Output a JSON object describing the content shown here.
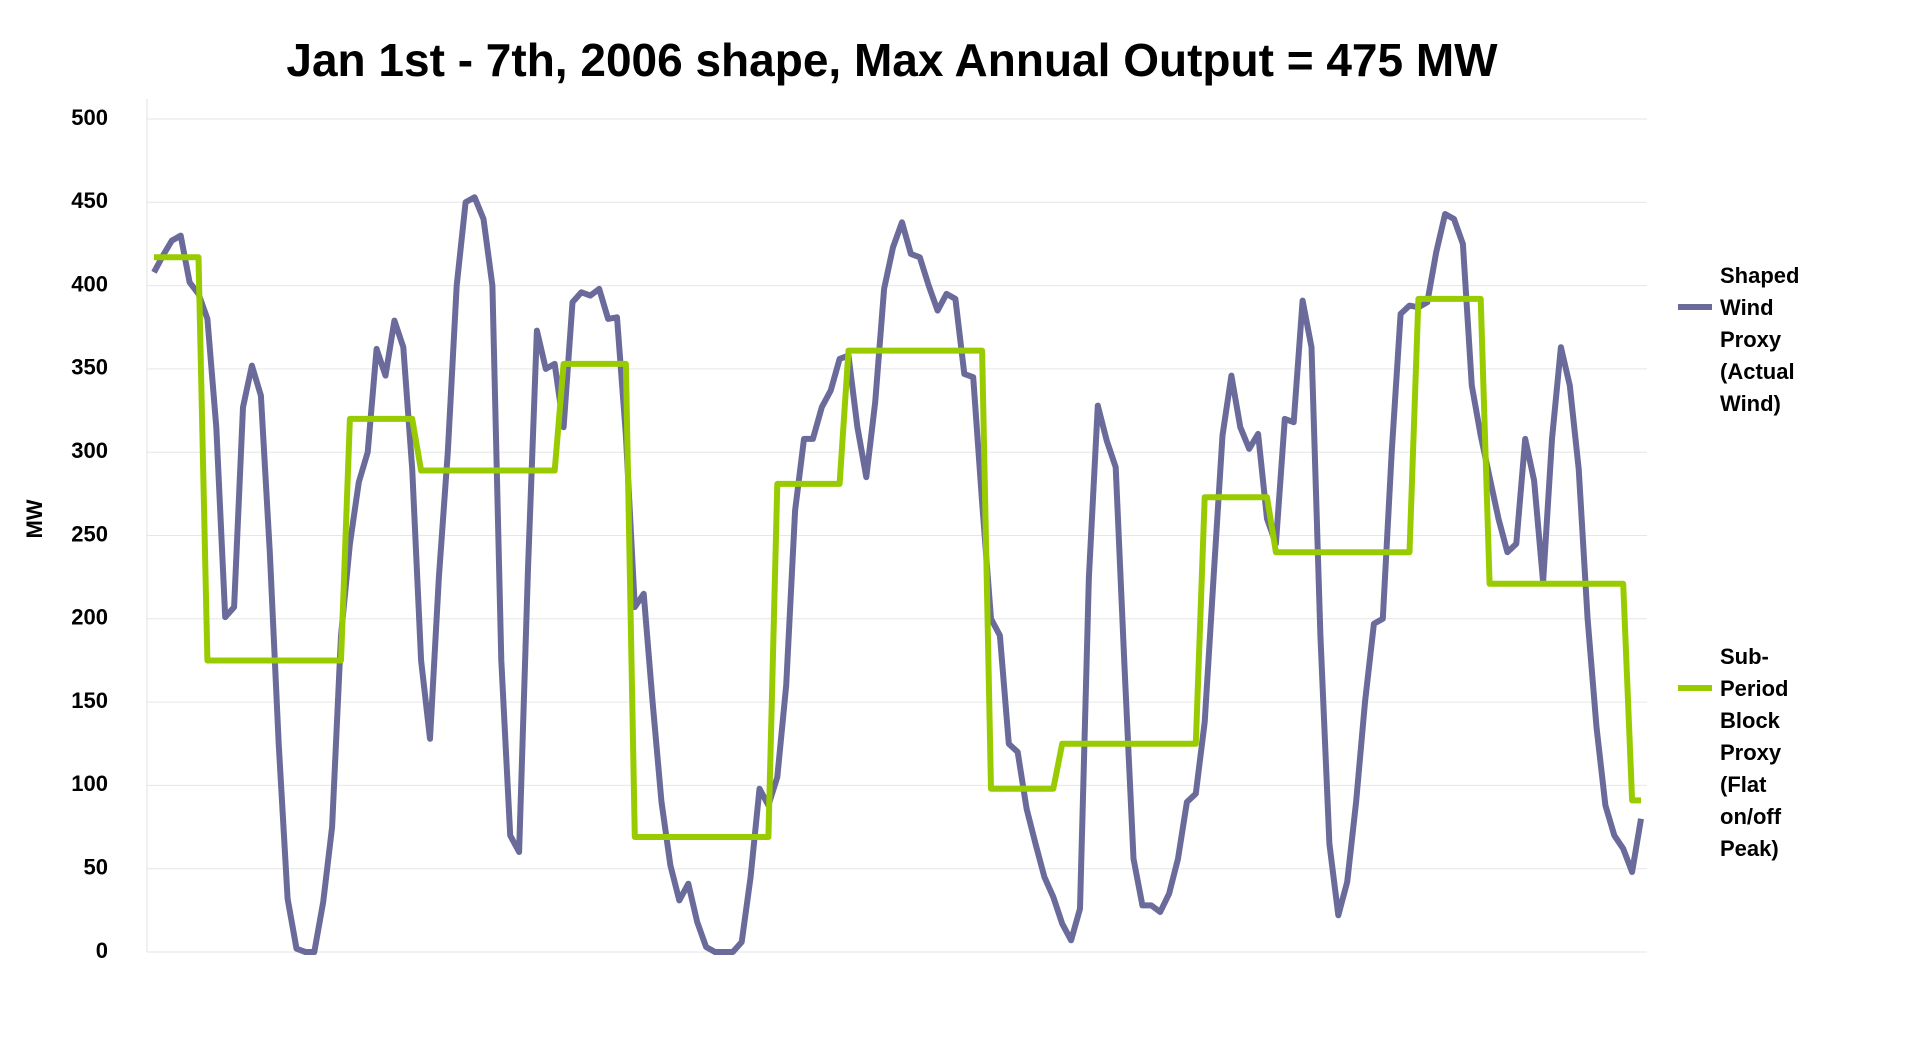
{
  "chart_data": {
    "type": "line",
    "title": "Jan 1st - 7th, 2006 shape, Max Annual Output = 475 MW",
    "y_label": "MW",
    "categories": [
      null,
      null,
      null,
      null,
      null,
      null,
      null,
      null,
      null,
      null,
      null,
      null,
      null,
      null,
      null,
      null,
      null,
      null,
      null,
      null,
      null,
      null,
      null,
      null,
      null,
      null,
      null,
      null,
      null,
      null,
      null,
      null,
      null,
      null,
      null,
      null,
      null,
      null,
      null,
      null,
      null,
      null,
      null,
      null,
      null,
      null,
      null,
      null,
      null,
      null,
      null,
      null,
      null,
      null,
      null,
      null,
      null,
      null,
      null,
      null,
      null,
      null,
      null,
      null,
      null,
      null,
      null,
      null,
      null,
      null,
      null,
      null,
      null,
      null,
      null,
      null,
      null,
      null,
      null,
      null,
      null,
      null,
      null,
      null,
      null,
      null,
      null,
      null,
      null,
      null,
      null,
      null,
      null,
      null,
      null,
      null,
      null,
      null,
      null,
      null,
      null,
      null,
      null,
      null,
      null,
      null,
      null,
      null,
      null,
      null,
      null,
      null,
      null,
      null,
      null,
      null,
      null,
      null,
      null,
      null,
      null,
      null,
      null,
      null,
      null,
      null,
      null,
      null,
      null,
      null,
      null,
      null,
      null,
      null,
      null,
      null,
      null,
      null,
      null,
      null,
      null,
      null,
      null,
      null,
      null,
      null,
      null,
      null,
      null,
      null,
      null,
      null,
      null,
      null,
      null,
      null,
      null,
      null,
      null,
      null,
      null,
      null,
      null,
      null,
      null,
      null,
      null,
      null
    ],
    "series": [
      {
        "name": "Shaped Wind Proxy (Actual Wind)",
        "color": "#6b6b9b",
        "values": [
          408,
          418,
          427,
          430,
          402,
          395,
          380,
          315,
          201,
          207,
          327,
          352,
          334,
          240,
          125,
          32,
          2,
          0,
          0,
          30,
          75,
          190,
          245,
          282,
          300,
          362,
          346,
          379,
          363,
          290,
          175,
          128,
          225,
          300,
          400,
          450,
          453,
          440,
          400,
          175,
          70,
          60,
          230,
          373,
          350,
          353,
          315,
          390,
          396,
          394,
          398,
          380,
          381,
          310,
          207,
          215,
          150,
          90,
          52,
          31,
          41,
          18,
          3,
          0,
          0,
          0,
          6,
          45,
          98,
          88,
          105,
          160,
          265,
          308,
          308,
          327,
          337,
          356,
          358,
          315,
          285,
          330,
          398,
          423,
          438,
          419,
          417,
          400,
          385,
          395,
          392,
          347,
          345,
          270,
          200,
          190,
          125,
          120,
          86,
          65,
          45,
          33,
          17,
          7,
          26,
          225,
          328,
          307,
          291,
          170,
          56,
          28,
          28,
          24,
          35,
          56,
          90,
          95,
          138,
          225,
          310,
          346,
          315,
          302,
          311,
          260,
          245,
          320,
          318,
          391,
          363,
          190,
          65,
          22,
          42,
          90,
          150,
          197,
          200,
          300,
          383,
          388,
          387,
          390,
          420,
          443,
          440,
          425,
          340,
          310,
          285,
          260,
          240,
          245,
          308,
          283,
          222,
          308,
          363,
          340,
          290,
          200,
          135,
          88,
          70,
          62,
          48,
          80
        ]
      },
      {
        "name": "Sub-Period Block Proxy (Flat on/off Peak)",
        "color": "#99cc00",
        "values": [
          417,
          417,
          417,
          417,
          417,
          417,
          175,
          175,
          175,
          175,
          175,
          175,
          175,
          175,
          175,
          175,
          175,
          175,
          175,
          175,
          175,
          175,
          320,
          320,
          320,
          320,
          320,
          320,
          320,
          320,
          289,
          289,
          289,
          289,
          289,
          289,
          289,
          289,
          289,
          289,
          289,
          289,
          289,
          289,
          289,
          289,
          353,
          353,
          353,
          353,
          353,
          353,
          353,
          353,
          69,
          69,
          69,
          69,
          69,
          69,
          69,
          69,
          69,
          69,
          69,
          69,
          69,
          69,
          69,
          69,
          281,
          281,
          281,
          281,
          281,
          281,
          281,
          281,
          361,
          361,
          361,
          361,
          361,
          361,
          361,
          361,
          361,
          361,
          361,
          361,
          361,
          361,
          361,
          361,
          98,
          98,
          98,
          98,
          98,
          98,
          98,
          98,
          125,
          125,
          125,
          125,
          125,
          125,
          125,
          125,
          125,
          125,
          125,
          125,
          125,
          125,
          125,
          125,
          273,
          273,
          273,
          273,
          273,
          273,
          273,
          273,
          240,
          240,
          240,
          240,
          240,
          240,
          240,
          240,
          240,
          240,
          240,
          240,
          240,
          240,
          240,
          240,
          392,
          392,
          392,
          392,
          392,
          392,
          392,
          392,
          221,
          221,
          221,
          221,
          221,
          221,
          221,
          221,
          221,
          221,
          221,
          221,
          221,
          221,
          221,
          221,
          91,
          91
        ]
      }
    ],
    "ylim": [
      0,
      500
    ],
    "yticks": [
      0,
      50,
      100,
      150,
      200,
      250,
      300,
      350,
      400,
      450,
      500
    ],
    "grid": true
  }
}
